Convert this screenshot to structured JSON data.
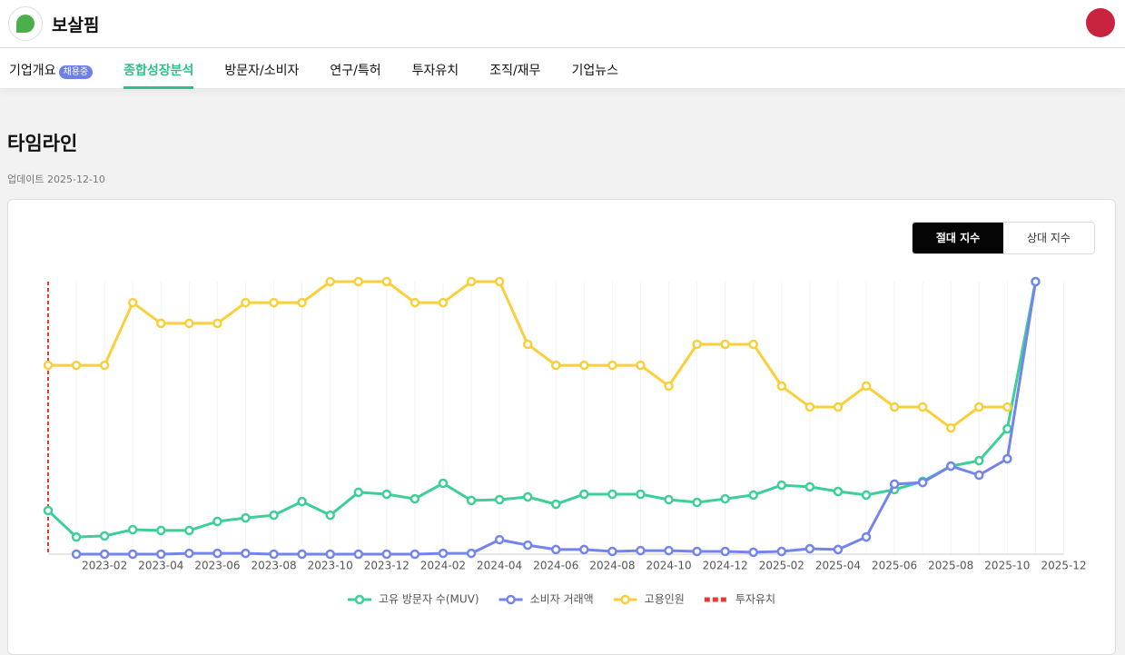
{
  "header": {
    "brand": "보살핌"
  },
  "tabs": [
    {
      "label": "기업개요",
      "badge": "채용중"
    },
    {
      "label": "종합성장분석",
      "active": true
    },
    {
      "label": "방문자/소비자"
    },
    {
      "label": "연구/특허"
    },
    {
      "label": "투자유치"
    },
    {
      "label": "조직/재무"
    },
    {
      "label": "기업뉴스"
    }
  ],
  "section": {
    "title": "타임라인",
    "updated": "업데이트 2025-12-10"
  },
  "toggle": [
    {
      "label": "절대 지수",
      "active": true
    },
    {
      "label": "상대 지수",
      "active": false
    }
  ],
  "chart_data": {
    "type": "line",
    "categories": [
      null,
      null,
      "2023-02",
      null,
      "2023-04",
      null,
      "2023-06",
      null,
      "2023-08",
      null,
      "2023-10",
      null,
      "2023-12",
      null,
      "2024-02",
      null,
      "2024-04",
      null,
      "2024-06",
      null,
      "2024-08",
      null,
      "2024-10",
      null,
      "2024-12",
      null,
      "2025-02",
      null,
      "2025-04",
      null,
      "2025-06",
      null,
      "2025-08",
      null,
      "2025-10",
      null,
      "2025-12"
    ],
    "ylim": [
      0,
      100
    ],
    "series": [
      {
        "name": "고유 방문자 수(MUV)",
        "color": "#3ecf98",
        "values": [
          16,
          6.3,
          6.7,
          9,
          8.7,
          8.7,
          12,
          13.3,
          14.3,
          19.3,
          14.3,
          22.7,
          22,
          20.3,
          26,
          19.7,
          20,
          21,
          18.3,
          22,
          22,
          22,
          20,
          19,
          20.3,
          21.7,
          25.3,
          24.7,
          23,
          21.7,
          23.7,
          26.7,
          32.3,
          34.3,
          46,
          100,
          null
        ]
      },
      {
        "name": "소비자 거래액",
        "color": "#7385ec",
        "values": [
          null,
          0,
          0,
          0,
          0,
          0.3,
          0.3,
          0.3,
          0,
          0,
          0,
          0,
          0,
          0,
          0.3,
          0.3,
          5.3,
          3.3,
          1.7,
          1.7,
          1,
          1.3,
          1.3,
          1,
          1,
          0.7,
          1,
          2,
          1.7,
          6.3,
          25.7,
          26.3,
          32.3,
          29,
          35,
          100,
          null
        ]
      },
      {
        "name": "고용인원",
        "color": "#f9cf3a",
        "values": [
          69.3,
          69.3,
          69.3,
          92.3,
          84.7,
          84.7,
          84.7,
          92.3,
          92.3,
          92.3,
          100,
          100,
          100,
          92.3,
          92.3,
          100,
          100,
          77,
          69.3,
          69.3,
          69.3,
          69.3,
          61.7,
          77,
          77,
          77,
          61.7,
          54,
          54,
          61.7,
          54,
          54,
          46.3,
          54,
          54,
          null,
          null
        ]
      }
    ],
    "events": {
      "name": "투자유치",
      "color": "#e53935",
      "at": [
        0
      ]
    },
    "grid": true
  }
}
